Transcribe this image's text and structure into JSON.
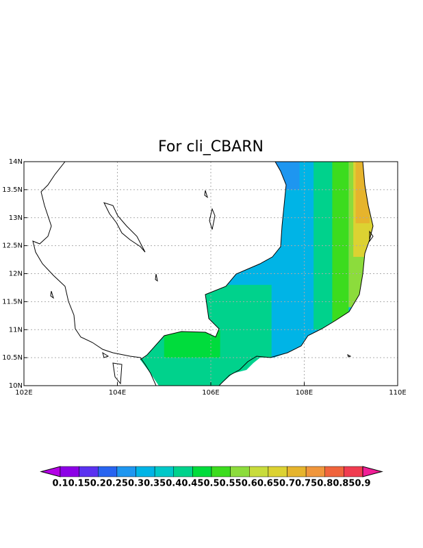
{
  "chart_data": {
    "type": "map",
    "title": "For cli_CBARN",
    "xlim": [
      102,
      110
    ],
    "ylim": [
      10,
      14
    ],
    "xticks": [
      {
        "value": 102,
        "label": "102E"
      },
      {
        "value": 104,
        "label": "104E"
      },
      {
        "value": 106,
        "label": "106E"
      },
      {
        "value": 108,
        "label": "108E"
      },
      {
        "value": 110,
        "label": "110E"
      }
    ],
    "yticks": [
      {
        "value": 10,
        "label": "10N"
      },
      {
        "value": 10.5,
        "label": "10.5N"
      },
      {
        "value": 11,
        "label": "11N"
      },
      {
        "value": 11.5,
        "label": "11.5N"
      },
      {
        "value": 12,
        "label": "12N"
      },
      {
        "value": 12.5,
        "label": "12.5N"
      },
      {
        "value": 13,
        "label": "13N"
      },
      {
        "value": 13.5,
        "label": "13.5N"
      },
      {
        "value": 14,
        "label": "14N"
      }
    ],
    "grid": true,
    "levels": [
      0.1,
      0.15,
      0.2,
      0.25,
      0.3,
      0.35,
      0.4,
      0.45,
      0.5,
      0.55,
      0.6,
      0.65,
      0.7,
      0.75,
      0.8,
      0.85,
      0.9
    ],
    "colors": [
      "#b400e6",
      "#8c00e6",
      "#5a32f0",
      "#2864f0",
      "#1e96f0",
      "#00b4e6",
      "#00c8c8",
      "#00d28c",
      "#00dc3c",
      "#3cdc1e",
      "#8cdc3c",
      "#c8dc3c",
      "#dcd232",
      "#e6b42d",
      "#f0963c",
      "#f0643c",
      "#f03c50",
      "#f01e96"
    ],
    "field": [
      {
        "lon": [
          104.4,
          109.7
        ],
        "lat": [
          10,
          14
        ],
        "value": 0.33
      },
      {
        "lon": [
          104.4,
          107.3
        ],
        "lat": [
          10,
          11.8
        ],
        "value": 0.42
      },
      {
        "lon": [
          105.0,
          106.2
        ],
        "lat": [
          10.5,
          11.0
        ],
        "value": 0.47
      },
      {
        "lon": [
          107.3,
          107.9
        ],
        "lat": [
          13.5,
          14
        ],
        "value": 0.27
      },
      {
        "lon": [
          108.2,
          108.7
        ],
        "lat": [
          11.0,
          14
        ],
        "value": 0.42
      },
      {
        "lon": [
          108.6,
          108.95
        ],
        "lat": [
          11.0,
          14
        ],
        "value": 0.5
      },
      {
        "lon": [
          108.95,
          109.7
        ],
        "lat": [
          11.4,
          14
        ],
        "value": 0.58
      },
      {
        "lon": [
          109.05,
          109.7
        ],
        "lat": [
          12.3,
          14
        ],
        "value": 0.65
      },
      {
        "lon": [
          109.1,
          109.4
        ],
        "lat": [
          12.9,
          14
        ],
        "value": 0.7
      }
    ]
  }
}
